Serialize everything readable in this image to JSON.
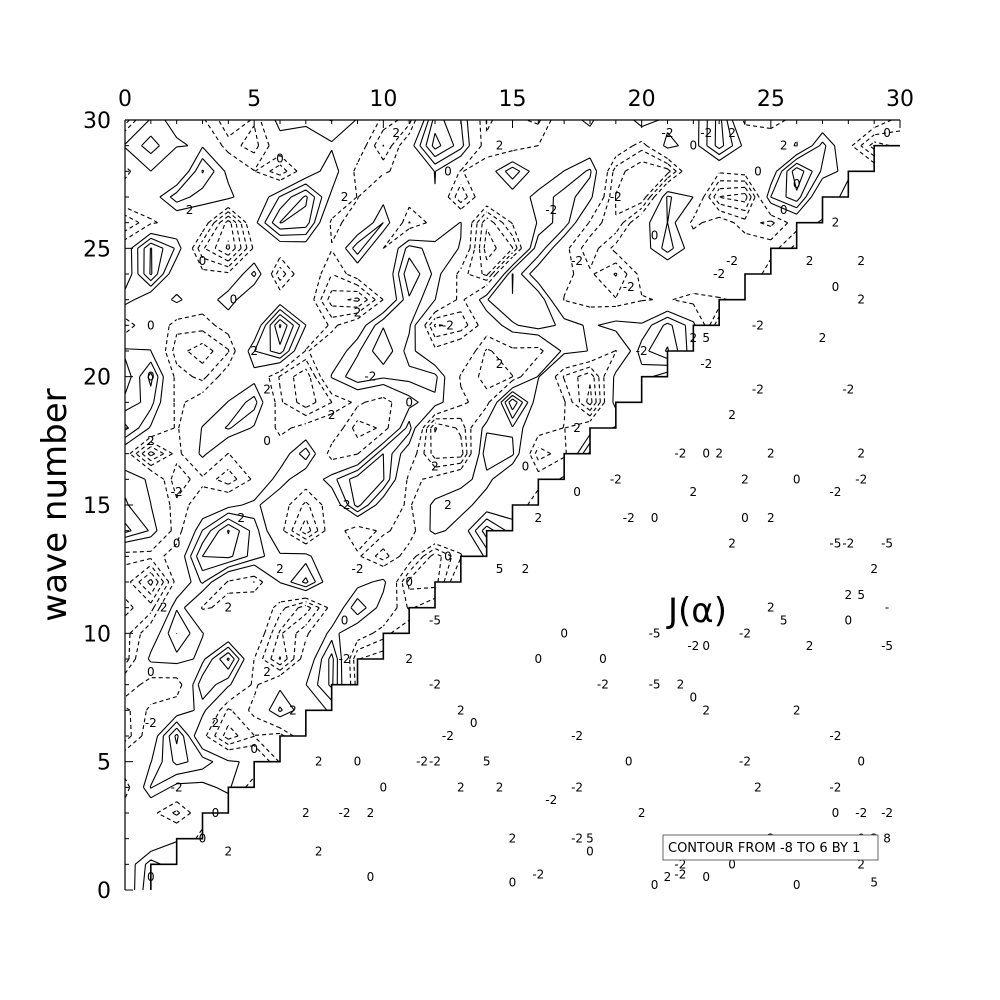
{
  "chart_data": {
    "type": "contour",
    "title": "",
    "xlabel": "",
    "ylabel": "wave number",
    "annotation": "J(α)",
    "contour_note": "CONTOUR FROM -8 TO 6 BY 1",
    "xlim": [
      0,
      30
    ],
    "ylim": [
      0,
      30
    ],
    "x_axis_position": "top",
    "xticks": [
      0,
      5,
      10,
      15,
      20,
      25,
      30
    ],
    "yticks": [
      0,
      5,
      10,
      15,
      20,
      25,
      30
    ],
    "x_minor_step": 1,
    "y_minor_step": 1,
    "contour_levels": {
      "min": -8,
      "max": 6,
      "step": 1
    },
    "negative_contours": "dashed",
    "positive_contours": "solid",
    "domain_boundary": "staircase along x = y, data shown above the diagonal",
    "contour_labels": [
      {
        "x": 2.5,
        "y": 26.5,
        "text": "2"
      },
      {
        "x": 4.2,
        "y": 23.0,
        "text": "0"
      },
      {
        "x": 6.0,
        "y": 28.5,
        "text": "0"
      },
      {
        "x": 8.5,
        "y": 27.0,
        "text": "2"
      },
      {
        "x": 10.5,
        "y": 29.5,
        "text": "2"
      },
      {
        "x": 12.5,
        "y": 28.0,
        "text": "0"
      },
      {
        "x": 14.5,
        "y": 29.0,
        "text": "2"
      },
      {
        "x": 16.5,
        "y": 26.5,
        "text": "-2"
      },
      {
        "x": 19.0,
        "y": 27.0,
        "text": "-2"
      },
      {
        "x": 20.5,
        "y": 25.5,
        "text": "0"
      },
      {
        "x": 22.0,
        "y": 29.0,
        "text": "0"
      },
      {
        "x": 24.5,
        "y": 28.0,
        "text": "0"
      },
      {
        "x": 3.0,
        "y": 24.5,
        "text": "0"
      },
      {
        "x": 1.0,
        "y": 22.0,
        "text": "0"
      },
      {
        "x": 5.0,
        "y": 21.0,
        "text": "2"
      },
      {
        "x": 9.0,
        "y": 22.5,
        "text": "2"
      },
      {
        "x": 12.5,
        "y": 22.0,
        "text": "-2"
      },
      {
        "x": 17.5,
        "y": 24.5,
        "text": "-2"
      },
      {
        "x": 19.5,
        "y": 23.5,
        "text": "-2"
      },
      {
        "x": 1.0,
        "y": 20.0,
        "text": "0"
      },
      {
        "x": 5.5,
        "y": 19.5,
        "text": "2"
      },
      {
        "x": 9.5,
        "y": 20.0,
        "text": "-2"
      },
      {
        "x": 11.0,
        "y": 19.0,
        "text": "0"
      },
      {
        "x": 14.5,
        "y": 20.5,
        "text": "2"
      },
      {
        "x": 17.5,
        "y": 18.0,
        "text": "2"
      },
      {
        "x": 20.0,
        "y": 21.0,
        "text": "-2"
      },
      {
        "x": 1.0,
        "y": 17.5,
        "text": "2"
      },
      {
        "x": 5.5,
        "y": 17.5,
        "text": "0"
      },
      {
        "x": 8.0,
        "y": 18.5,
        "text": "2"
      },
      {
        "x": 12.0,
        "y": 16.5,
        "text": "2"
      },
      {
        "x": 15.5,
        "y": 16.5,
        "text": "0"
      },
      {
        "x": 2.0,
        "y": 15.5,
        "text": "-2"
      },
      {
        "x": 4.5,
        "y": 14.5,
        "text": "2"
      },
      {
        "x": 8.5,
        "y": 15.0,
        "text": "-2"
      },
      {
        "x": 12.5,
        "y": 15.0,
        "text": "2"
      },
      {
        "x": 2.0,
        "y": 13.5,
        "text": "0"
      },
      {
        "x": 6.0,
        "y": 12.5,
        "text": "2"
      },
      {
        "x": 9.0,
        "y": 12.5,
        "text": "-2"
      },
      {
        "x": 11.0,
        "y": 12.0,
        "text": "0"
      },
      {
        "x": 12.5,
        "y": 13.0,
        "text": "0"
      },
      {
        "x": 1.5,
        "y": 11.0,
        "text": "2"
      },
      {
        "x": 4.0,
        "y": 11.0,
        "text": "2"
      },
      {
        "x": 8.5,
        "y": 10.5,
        "text": "0"
      },
      {
        "x": 1.0,
        "y": 8.5,
        "text": "0"
      },
      {
        "x": 5.5,
        "y": 8.5,
        "text": "2"
      },
      {
        "x": 8.5,
        "y": 9.0,
        "text": "-2"
      },
      {
        "x": 1.0,
        "y": 6.5,
        "text": "-2"
      },
      {
        "x": 3.5,
        "y": 6.5,
        "text": "2"
      },
      {
        "x": 6.5,
        "y": 7.0,
        "text": "2"
      },
      {
        "x": 2.0,
        "y": 4.0,
        "text": "-2"
      },
      {
        "x": 3.5,
        "y": 3.0,
        "text": "0"
      },
      {
        "x": 5.0,
        "y": 5.5,
        "text": "0"
      },
      {
        "x": 1.0,
        "y": 0.5,
        "text": "0"
      },
      {
        "x": 4.0,
        "y": 1.5,
        "text": "2"
      },
      {
        "x": 7.5,
        "y": 5.0,
        "text": "2"
      },
      {
        "x": 9.0,
        "y": 5.0,
        "text": "0"
      },
      {
        "x": 10.0,
        "y": 4.0,
        "text": "0"
      },
      {
        "x": 11.5,
        "y": 5.0,
        "text": "-2"
      },
      {
        "x": 12.5,
        "y": 6.0,
        "text": "-2"
      },
      {
        "x": 13.5,
        "y": 6.5,
        "text": "0"
      },
      {
        "x": 14.0,
        "y": 5.0,
        "text": "5"
      },
      {
        "x": 14.5,
        "y": 4.0,
        "text": "2"
      },
      {
        "x": 15.0,
        "y": 2.0,
        "text": "2"
      },
      {
        "x": 15.0,
        "y": 0.3,
        "text": "0"
      },
      {
        "x": 16.0,
        "y": 0.6,
        "text": "-2"
      },
      {
        "x": 16.5,
        "y": 3.5,
        "text": "-2"
      },
      {
        "x": 17.5,
        "y": 2.0,
        "text": "-2"
      },
      {
        "x": 18.0,
        "y": 1.5,
        "text": "0"
      },
      {
        "x": 18.0,
        "y": 2.0,
        "text": "5"
      },
      {
        "x": 17.5,
        "y": 6.0,
        "text": "-2"
      },
      {
        "x": 16.0,
        "y": 9.0,
        "text": "0"
      },
      {
        "x": 17.0,
        "y": 10.0,
        "text": "0"
      },
      {
        "x": 18.5,
        "y": 9.0,
        "text": "0"
      },
      {
        "x": 18.5,
        "y": 8.0,
        "text": "-2"
      },
      {
        "x": 19.5,
        "y": 5.0,
        "text": "0"
      },
      {
        "x": 20.0,
        "y": 3.0,
        "text": "2"
      },
      {
        "x": 20.5,
        "y": 8.0,
        "text": "-5"
      },
      {
        "x": 20.5,
        "y": 10.0,
        "text": "-5"
      },
      {
        "x": 12.0,
        "y": 10.5,
        "text": "-5"
      },
      {
        "x": 11.0,
        "y": 9.0,
        "text": "2"
      },
      {
        "x": 12.0,
        "y": 8.0,
        "text": "-2"
      },
      {
        "x": 13.0,
        "y": 7.0,
        "text": "2"
      },
      {
        "x": 14.5,
        "y": 12.5,
        "text": "5"
      },
      {
        "x": 15.5,
        "y": 12.5,
        "text": "2"
      },
      {
        "x": 16.0,
        "y": 14.5,
        "text": "2"
      },
      {
        "x": 17.5,
        "y": 15.5,
        "text": "0"
      },
      {
        "x": 19.0,
        "y": 16.0,
        "text": "-2"
      },
      {
        "x": 19.5,
        "y": 14.5,
        "text": "-2"
      },
      {
        "x": 20.5,
        "y": 14.5,
        "text": "0"
      },
      {
        "x": 21.5,
        "y": 17.0,
        "text": "-2"
      },
      {
        "x": 22.5,
        "y": 17.0,
        "text": "0"
      },
      {
        "x": 23.0,
        "y": 17.0,
        "text": "2"
      },
      {
        "x": 22.0,
        "y": 15.5,
        "text": "2"
      },
      {
        "x": 23.5,
        "y": 13.5,
        "text": "2"
      },
      {
        "x": 24.0,
        "y": 16.0,
        "text": "2"
      },
      {
        "x": 24.0,
        "y": 14.5,
        "text": "0"
      },
      {
        "x": 25.0,
        "y": 14.5,
        "text": "2"
      },
      {
        "x": 25.0,
        "y": 17.0,
        "text": "2"
      },
      {
        "x": 26.0,
        "y": 16.0,
        "text": "0"
      },
      {
        "x": 27.5,
        "y": 15.5,
        "text": "-2"
      },
      {
        "x": 28.5,
        "y": 17.0,
        "text": "2"
      },
      {
        "x": 28.5,
        "y": 16.0,
        "text": "-2"
      },
      {
        "x": 27.5,
        "y": 13.5,
        "text": "-5"
      },
      {
        "x": 28.0,
        "y": 13.5,
        "text": "-2"
      },
      {
        "x": 29.5,
        "y": 13.5,
        "text": "-5"
      },
      {
        "x": 29.0,
        "y": 12.5,
        "text": "2"
      },
      {
        "x": 29.5,
        "y": 11.0,
        "text": "-"
      },
      {
        "x": 28.0,
        "y": 11.5,
        "text": "2"
      },
      {
        "x": 28.5,
        "y": 11.5,
        "text": "5"
      },
      {
        "x": 28.0,
        "y": 10.5,
        "text": "0"
      },
      {
        "x": 26.5,
        "y": 9.5,
        "text": "2"
      },
      {
        "x": 29.5,
        "y": 9.5,
        "text": "-5"
      },
      {
        "x": 25.0,
        "y": 11.0,
        "text": "2"
      },
      {
        "x": 25.5,
        "y": 10.5,
        "text": "5"
      },
      {
        "x": 24.0,
        "y": 10.0,
        "text": "-2"
      },
      {
        "x": 22.0,
        "y": 9.5,
        "text": "-2"
      },
      {
        "x": 22.5,
        "y": 9.5,
        "text": "0"
      },
      {
        "x": 21.5,
        "y": 8.0,
        "text": "2"
      },
      {
        "x": 22.0,
        "y": 7.5,
        "text": "0"
      },
      {
        "x": 22.5,
        "y": 7.0,
        "text": "2"
      },
      {
        "x": 26.0,
        "y": 7.0,
        "text": "2"
      },
      {
        "x": 24.0,
        "y": 5.0,
        "text": "-2"
      },
      {
        "x": 24.5,
        "y": 4.0,
        "text": "2"
      },
      {
        "x": 27.5,
        "y": 6.0,
        "text": "-2"
      },
      {
        "x": 27.5,
        "y": 4.0,
        "text": "-2"
      },
      {
        "x": 28.5,
        "y": 5.0,
        "text": "0"
      },
      {
        "x": 27.5,
        "y": 3.0,
        "text": "0"
      },
      {
        "x": 28.5,
        "y": 3.0,
        "text": "-2"
      },
      {
        "x": 29.5,
        "y": 3.0,
        "text": "-2"
      },
      {
        "x": 25.0,
        "y": 2.0,
        "text": "2"
      },
      {
        "x": 28.5,
        "y": 2.0,
        "text": "0"
      },
      {
        "x": 29.0,
        "y": 2.0,
        "text": "2"
      },
      {
        "x": 29.5,
        "y": 2.0,
        "text": "8"
      },
      {
        "x": 23.5,
        "y": 1.0,
        "text": "0"
      },
      {
        "x": 22.5,
        "y": 0.5,
        "text": "0"
      },
      {
        "x": 21.5,
        "y": 1.0,
        "text": "-2"
      },
      {
        "x": 21.0,
        "y": 0.5,
        "text": "2"
      },
      {
        "x": 20.5,
        "y": 0.2,
        "text": "0"
      },
      {
        "x": 21.5,
        "y": 0.6,
        "text": "-2"
      },
      {
        "x": 26.0,
        "y": 0.2,
        "text": "0"
      },
      {
        "x": 28.5,
        "y": 1.0,
        "text": "2"
      },
      {
        "x": 29.0,
        "y": 0.3,
        "text": "5"
      },
      {
        "x": 21.0,
        "y": 29.5,
        "text": "-2"
      },
      {
        "x": 22.5,
        "y": 29.5,
        "text": "-2"
      },
      {
        "x": 23.5,
        "y": 29.5,
        "text": "2"
      },
      {
        "x": 25.5,
        "y": 29.0,
        "text": "2"
      },
      {
        "x": 26.0,
        "y": 27.5,
        "text": "0"
      },
      {
        "x": 25.5,
        "y": 26.5,
        "text": "0"
      },
      {
        "x": 27.5,
        "y": 26.0,
        "text": "2"
      },
      {
        "x": 26.5,
        "y": 24.5,
        "text": "2"
      },
      {
        "x": 28.5,
        "y": 24.5,
        "text": "2"
      },
      {
        "x": 27.5,
        "y": 23.5,
        "text": "0"
      },
      {
        "x": 28.5,
        "y": 23.0,
        "text": "2"
      },
      {
        "x": 29.5,
        "y": 29.5,
        "text": "0"
      },
      {
        "x": 27.0,
        "y": 21.5,
        "text": "2"
      },
      {
        "x": 24.5,
        "y": 22.0,
        "text": "-2"
      },
      {
        "x": 22.5,
        "y": 21.5,
        "text": "5"
      },
      {
        "x": 22.0,
        "y": 21.5,
        "text": "2"
      },
      {
        "x": 22.5,
        "y": 20.5,
        "text": "-2"
      },
      {
        "x": 24.5,
        "y": 19.5,
        "text": "-2"
      },
      {
        "x": 28.0,
        "y": 19.5,
        "text": "-2"
      },
      {
        "x": 23.5,
        "y": 18.5,
        "text": "2"
      },
      {
        "x": 23.5,
        "y": 24.5,
        "text": "-2"
      },
      {
        "x": 23.0,
        "y": 24.0,
        "text": "-2"
      },
      {
        "x": 17.5,
        "y": 4.0,
        "text": "-2"
      },
      {
        "x": 12.0,
        "y": 5.0,
        "text": "-2"
      },
      {
        "x": 8.5,
        "y": 3.0,
        "text": "-2"
      },
      {
        "x": 7.0,
        "y": 3.0,
        "text": "2"
      },
      {
        "x": 7.5,
        "y": 1.5,
        "text": "2"
      },
      {
        "x": 9.5,
        "y": 3.0,
        "text": "2"
      },
      {
        "x": 9.5,
        "y": 0.5,
        "text": "0"
      },
      {
        "x": 13.0,
        "y": 4.0,
        "text": "2"
      },
      {
        "x": 3.0,
        "y": 2.0,
        "text": "0"
      }
    ]
  }
}
